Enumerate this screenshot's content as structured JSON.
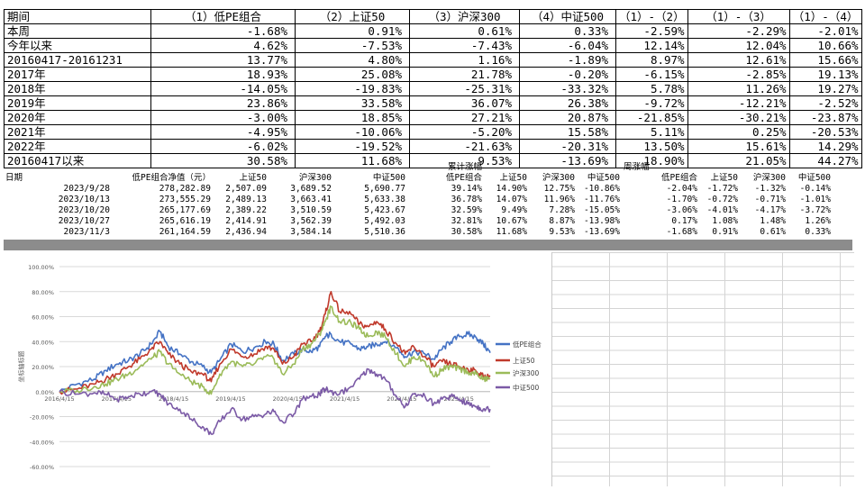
{
  "top_table": {
    "headers": [
      "期间",
      "（1）低PE组合",
      "（2）上证50",
      "（3）沪深300",
      "（4）中证500",
      "（1）-（2）",
      "（1）-（3）",
      "（1）-（4）"
    ],
    "rows": [
      [
        "本周",
        "-1.68%",
        "0.91%",
        "0.61%",
        "0.33%",
        "-2.59%",
        "-2.29%",
        "-2.01%"
      ],
      [
        "今年以来",
        "4.62%",
        "-7.53%",
        "-7.43%",
        "-6.04%",
        "12.14%",
        "12.04%",
        "10.66%"
      ],
      [
        "20160417-20161231",
        "13.77%",
        "4.80%",
        "1.16%",
        "-1.89%",
        "8.97%",
        "12.61%",
        "15.66%"
      ],
      [
        "2017年",
        "18.93%",
        "25.08%",
        "21.78%",
        "-0.20%",
        "-6.15%",
        "-2.85%",
        "19.13%"
      ],
      [
        "2018年",
        "-14.05%",
        "-19.83%",
        "-25.31%",
        "-33.32%",
        "5.78%",
        "11.26%",
        "19.27%"
      ],
      [
        "2019年",
        "23.86%",
        "33.58%",
        "36.07%",
        "26.38%",
        "-9.72%",
        "-12.21%",
        "-2.52%"
      ],
      [
        "2020年",
        "-3.00%",
        "18.85%",
        "27.21%",
        "20.87%",
        "-21.85%",
        "-30.21%",
        "-23.87%"
      ],
      [
        "2021年",
        "-4.95%",
        "-10.06%",
        "-5.20%",
        "15.58%",
        "5.11%",
        "0.25%",
        "-20.53%"
      ],
      [
        "2022年",
        "-6.02%",
        "-19.52%",
        "-21.63%",
        "-20.31%",
        "13.50%",
        "15.61%",
        "14.29%"
      ],
      [
        "20160417以来",
        "30.58%",
        "11.68%",
        "9.53%",
        "-13.69%",
        "18.90%",
        "21.05%",
        "44.27%"
      ]
    ]
  },
  "mid_table": {
    "group_cumulative": "累计涨幅",
    "group_weekly": "周涨幅",
    "headers": [
      "日期",
      "低PE组合净值（元）",
      "上证50",
      "沪深300",
      "中证500",
      "低PE组合",
      "上证50",
      "沪深300",
      "中证500",
      "低PE组合",
      "上证50",
      "沪深300",
      "中证500"
    ],
    "rows": [
      [
        "2023/9/28",
        "278,282.89",
        "2,507.09",
        "3,689.52",
        "5,690.77",
        "39.14%",
        "14.90%",
        "12.75%",
        "-10.86%",
        "-2.04%",
        "-1.72%",
        "-1.32%",
        "-0.14%"
      ],
      [
        "2023/10/13",
        "273,555.29",
        "2,489.13",
        "3,663.41",
        "5,633.38",
        "36.78%",
        "14.07%",
        "11.96%",
        "-11.76%",
        "-1.70%",
        "-0.72%",
        "-0.71%",
        "-1.01%"
      ],
      [
        "2023/10/20",
        "265,177.69",
        "2,389.22",
        "3,510.59",
        "5,423.67",
        "32.59%",
        "9.49%",
        "7.28%",
        "-15.05%",
        "-3.06%",
        "-4.01%",
        "-4.17%",
        "-3.72%"
      ],
      [
        "2023/10/27",
        "265,616.19",
        "2,414.91",
        "3,562.39",
        "5,492.03",
        "32.81%",
        "10.67%",
        "8.87%",
        "-13.98%",
        "0.17%",
        "1.08%",
        "1.48%",
        "1.26%"
      ],
      [
        "2023/11/3",
        "261,164.59",
        "2,436.94",
        "3,584.14",
        "5,510.36",
        "30.58%",
        "11.68%",
        "9.53%",
        "-13.69%",
        "-1.68%",
        "0.91%",
        "0.61%",
        "0.33%"
      ]
    ]
  },
  "chart_data": {
    "type": "line",
    "ylabel": "坐标轴标题",
    "ylim": [
      -0.6,
      1.0
    ],
    "yticks": [
      "100.00%",
      "80.00%",
      "60.00%",
      "40.00%",
      "20.00%",
      "0.00%",
      "-20.00%",
      "-40.00%",
      "-60.00%"
    ],
    "xticks": [
      "2016/4/15",
      "2017/4/15",
      "2018/4/15",
      "2019/4/15",
      "2020/4/15",
      "2021/4/15",
      "2022/4/15",
      "2023/4/15"
    ],
    "x_start_year": 2016.29,
    "x_end_year": 2023.84,
    "series": [
      {
        "name": "低PE组合",
        "color": "#4472c4",
        "points": [
          [
            2016.29,
            0.0
          ],
          [
            2016.6,
            0.06
          ],
          [
            2016.9,
            0.1
          ],
          [
            2017.1,
            0.17
          ],
          [
            2017.3,
            0.22
          ],
          [
            2017.5,
            0.25
          ],
          [
            2017.7,
            0.3
          ],
          [
            2017.9,
            0.38
          ],
          [
            2018.05,
            0.48
          ],
          [
            2018.2,
            0.36
          ],
          [
            2018.4,
            0.3
          ],
          [
            2018.6,
            0.24
          ],
          [
            2018.8,
            0.2
          ],
          [
            2018.95,
            0.15
          ],
          [
            2019.1,
            0.25
          ],
          [
            2019.3,
            0.38
          ],
          [
            2019.5,
            0.32
          ],
          [
            2019.7,
            0.35
          ],
          [
            2019.9,
            0.4
          ],
          [
            2020.05,
            0.38
          ],
          [
            2020.2,
            0.25
          ],
          [
            2020.4,
            0.3
          ],
          [
            2020.55,
            0.34
          ],
          [
            2020.7,
            0.32
          ],
          [
            2020.85,
            0.36
          ],
          [
            2020.95,
            0.44
          ],
          [
            2021.05,
            0.46
          ],
          [
            2021.2,
            0.4
          ],
          [
            2021.4,
            0.38
          ],
          [
            2021.55,
            0.34
          ],
          [
            2021.7,
            0.36
          ],
          [
            2021.85,
            0.38
          ],
          [
            2022.0,
            0.4
          ],
          [
            2022.2,
            0.35
          ],
          [
            2022.35,
            0.28
          ],
          [
            2022.5,
            0.32
          ],
          [
            2022.7,
            0.3
          ],
          [
            2022.85,
            0.26
          ],
          [
            2023.0,
            0.34
          ],
          [
            2023.15,
            0.4
          ],
          [
            2023.3,
            0.44
          ],
          [
            2023.45,
            0.46
          ],
          [
            2023.6,
            0.43
          ],
          [
            2023.72,
            0.38
          ],
          [
            2023.84,
            0.31
          ]
        ]
      },
      {
        "name": "上证50",
        "color": "#c0392b",
        "points": [
          [
            2016.29,
            0.0
          ],
          [
            2016.6,
            0.02
          ],
          [
            2016.9,
            0.06
          ],
          [
            2017.1,
            0.1
          ],
          [
            2017.3,
            0.14
          ],
          [
            2017.5,
            0.2
          ],
          [
            2017.7,
            0.26
          ],
          [
            2017.9,
            0.34
          ],
          [
            2018.05,
            0.4
          ],
          [
            2018.2,
            0.3
          ],
          [
            2018.4,
            0.22
          ],
          [
            2018.6,
            0.16
          ],
          [
            2018.8,
            0.14
          ],
          [
            2018.95,
            0.08
          ],
          [
            2019.1,
            0.22
          ],
          [
            2019.3,
            0.34
          ],
          [
            2019.5,
            0.28
          ],
          [
            2019.7,
            0.3
          ],
          [
            2019.9,
            0.36
          ],
          [
            2020.05,
            0.34
          ],
          [
            2020.2,
            0.22
          ],
          [
            2020.4,
            0.28
          ],
          [
            2020.55,
            0.38
          ],
          [
            2020.7,
            0.4
          ],
          [
            2020.85,
            0.48
          ],
          [
            2020.95,
            0.62
          ],
          [
            2021.05,
            0.8
          ],
          [
            2021.2,
            0.64
          ],
          [
            2021.4,
            0.62
          ],
          [
            2021.55,
            0.54
          ],
          [
            2021.7,
            0.52
          ],
          [
            2021.85,
            0.56
          ],
          [
            2022.0,
            0.5
          ],
          [
            2022.2,
            0.38
          ],
          [
            2022.35,
            0.3
          ],
          [
            2022.5,
            0.36
          ],
          [
            2022.7,
            0.28
          ],
          [
            2022.85,
            0.2
          ],
          [
            2023.0,
            0.24
          ],
          [
            2023.15,
            0.22
          ],
          [
            2023.3,
            0.2
          ],
          [
            2023.45,
            0.18
          ],
          [
            2023.6,
            0.16
          ],
          [
            2023.72,
            0.12
          ],
          [
            2023.84,
            0.12
          ]
        ]
      },
      {
        "name": "沪深300",
        "color": "#9bbb59",
        "points": [
          [
            2016.29,
            0.0
          ],
          [
            2016.6,
            0.01
          ],
          [
            2016.9,
            0.04
          ],
          [
            2017.1,
            0.06
          ],
          [
            2017.3,
            0.1
          ],
          [
            2017.5,
            0.14
          ],
          [
            2017.7,
            0.2
          ],
          [
            2017.9,
            0.26
          ],
          [
            2018.05,
            0.32
          ],
          [
            2018.2,
            0.22
          ],
          [
            2018.4,
            0.14
          ],
          [
            2018.6,
            0.08
          ],
          [
            2018.8,
            0.04
          ],
          [
            2018.95,
            -0.02
          ],
          [
            2019.1,
            0.14
          ],
          [
            2019.3,
            0.24
          ],
          [
            2019.5,
            0.2
          ],
          [
            2019.7,
            0.22
          ],
          [
            2019.9,
            0.28
          ],
          [
            2020.05,
            0.26
          ],
          [
            2020.2,
            0.14
          ],
          [
            2020.4,
            0.22
          ],
          [
            2020.55,
            0.34
          ],
          [
            2020.7,
            0.38
          ],
          [
            2020.85,
            0.46
          ],
          [
            2020.95,
            0.56
          ],
          [
            2021.05,
            0.68
          ],
          [
            2021.2,
            0.56
          ],
          [
            2021.4,
            0.55
          ],
          [
            2021.55,
            0.5
          ],
          [
            2021.7,
            0.44
          ],
          [
            2021.85,
            0.48
          ],
          [
            2022.0,
            0.44
          ],
          [
            2022.2,
            0.3
          ],
          [
            2022.35,
            0.2
          ],
          [
            2022.5,
            0.28
          ],
          [
            2022.7,
            0.24
          ],
          [
            2022.85,
            0.12
          ],
          [
            2023.0,
            0.18
          ],
          [
            2023.15,
            0.2
          ],
          [
            2023.3,
            0.18
          ],
          [
            2023.45,
            0.16
          ],
          [
            2023.6,
            0.14
          ],
          [
            2023.72,
            0.1
          ],
          [
            2023.84,
            0.1
          ]
        ]
      },
      {
        "name": "中证500",
        "color": "#7b5aa6",
        "points": [
          [
            2016.29,
            0.0
          ],
          [
            2016.6,
            -0.02
          ],
          [
            2016.9,
            -0.01
          ],
          [
            2017.1,
            -0.02
          ],
          [
            2017.3,
            -0.06
          ],
          [
            2017.5,
            -0.04
          ],
          [
            2017.7,
            -0.02
          ],
          [
            2017.9,
            0.0
          ],
          [
            2018.05,
            -0.02
          ],
          [
            2018.2,
            -0.1
          ],
          [
            2018.4,
            -0.14
          ],
          [
            2018.6,
            -0.22
          ],
          [
            2018.8,
            -0.28
          ],
          [
            2018.95,
            -0.34
          ],
          [
            2019.1,
            -0.24
          ],
          [
            2019.3,
            -0.14
          ],
          [
            2019.5,
            -0.22
          ],
          [
            2019.7,
            -0.2
          ],
          [
            2019.9,
            -0.18
          ],
          [
            2020.05,
            -0.16
          ],
          [
            2020.2,
            -0.24
          ],
          [
            2020.4,
            -0.18
          ],
          [
            2020.55,
            -0.06
          ],
          [
            2020.7,
            -0.04
          ],
          [
            2020.85,
            -0.02
          ],
          [
            2020.95,
            0.02
          ],
          [
            2021.05,
            0.0
          ],
          [
            2021.2,
            -0.02
          ],
          [
            2021.4,
            0.04
          ],
          [
            2021.55,
            0.1
          ],
          [
            2021.7,
            0.18
          ],
          [
            2021.85,
            0.14
          ],
          [
            2022.0,
            0.1
          ],
          [
            2022.2,
            -0.04
          ],
          [
            2022.35,
            -0.12
          ],
          [
            2022.5,
            -0.02
          ],
          [
            2022.7,
            -0.04
          ],
          [
            2022.85,
            -0.1
          ],
          [
            2023.0,
            -0.06
          ],
          [
            2023.15,
            -0.04
          ],
          [
            2023.3,
            -0.06
          ],
          [
            2023.45,
            -0.1
          ],
          [
            2023.6,
            -0.12
          ],
          [
            2023.72,
            -0.14
          ],
          [
            2023.84,
            -0.14
          ]
        ]
      }
    ]
  }
}
